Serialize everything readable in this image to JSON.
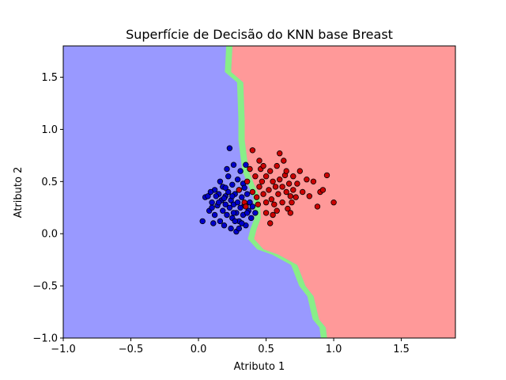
{
  "chart_data": {
    "type": "scatter",
    "title": "Superfície de Decisão do KNN base Breast",
    "xlabel": "Atributo 1",
    "ylabel": "Atributo 2",
    "xlim": [
      -1.0,
      1.9
    ],
    "ylim": [
      -1.0,
      1.8
    ],
    "x_ticks": [
      -1.0,
      -0.5,
      0.0,
      0.5,
      1.0,
      1.5
    ],
    "y_ticks": [
      -1.0,
      -0.5,
      0.0,
      0.5,
      1.0,
      1.5
    ],
    "x_tick_labels": [
      "−1.0",
      "−0.5",
      "0.0",
      "0.5",
      "1.0",
      "1.5"
    ],
    "y_tick_labels": [
      "−1.0",
      "−0.5",
      "0.0",
      "0.5",
      "1.0",
      "1.5"
    ],
    "grid": false,
    "decision_surface": {
      "colors": {
        "class_0": "#9999ff",
        "class_1": "#ff9999",
        "transition": "#88ee88"
      },
      "boundary": [
        [
          0.24,
          1.8
        ],
        [
          0.23,
          1.55
        ],
        [
          0.32,
          1.45
        ],
        [
          0.33,
          1.1
        ],
        [
          0.33,
          0.9
        ],
        [
          0.36,
          0.6
        ],
        [
          0.44,
          0.35
        ],
        [
          0.45,
          0.15
        ],
        [
          0.42,
          0.05
        ],
        [
          0.4,
          -0.05
        ],
        [
          0.47,
          -0.15
        ],
        [
          0.58,
          -0.2
        ],
        [
          0.72,
          -0.3
        ],
        [
          0.78,
          -0.5
        ],
        [
          0.84,
          -0.6
        ],
        [
          0.88,
          -0.82
        ],
        [
          0.93,
          -0.9
        ],
        [
          0.94,
          -1.0
        ]
      ]
    },
    "series": [
      {
        "color": "#0000cc",
        "points": [
          [
            0.05,
            0.35
          ],
          [
            0.08,
            0.22
          ],
          [
            0.1,
            0.3
          ],
          [
            0.12,
            0.42
          ],
          [
            0.12,
            0.18
          ],
          [
            0.14,
            0.27
          ],
          [
            0.15,
            0.38
          ],
          [
            0.16,
            0.12
          ],
          [
            0.17,
            0.32
          ],
          [
            0.18,
            0.22
          ],
          [
            0.18,
            0.45
          ],
          [
            0.19,
            0.08
          ],
          [
            0.2,
            0.28
          ],
          [
            0.2,
            0.36
          ],
          [
            0.21,
            0.18
          ],
          [
            0.22,
            0.4
          ],
          [
            0.22,
            0.55
          ],
          [
            0.23,
            0.25
          ],
          [
            0.24,
            0.05
          ],
          [
            0.24,
            0.32
          ],
          [
            0.25,
            0.15
          ],
          [
            0.25,
            0.47
          ],
          [
            0.26,
            0.66
          ],
          [
            0.26,
            0.28
          ],
          [
            0.27,
            0.38
          ],
          [
            0.28,
            0.2
          ],
          [
            0.28,
            0.02
          ],
          [
            0.29,
            0.3
          ],
          [
            0.3,
            0.42
          ],
          [
            0.3,
            0.12
          ],
          [
            0.31,
            0.25
          ],
          [
            0.32,
            0.35
          ],
          [
            0.33,
            0.48
          ],
          [
            0.33,
            0.18
          ],
          [
            0.34,
            0.28
          ],
          [
            0.35,
            0.08
          ],
          [
            0.36,
            0.38
          ],
          [
            0.37,
            0.22
          ],
          [
            0.38,
            0.3
          ],
          [
            0.39,
            0.15
          ],
          [
            0.4,
            0.26
          ],
          [
            0.42,
            0.2
          ],
          [
            0.1,
            0.25
          ],
          [
            0.13,
            0.36
          ],
          [
            0.16,
            0.5
          ],
          [
            0.21,
            0.62
          ],
          [
            0.23,
            0.82
          ],
          [
            0.27,
            0.12
          ],
          [
            0.29,
            0.52
          ],
          [
            0.31,
            0.6
          ],
          [
            0.34,
            0.44
          ],
          [
            0.36,
            0.2
          ],
          [
            0.3,
            0.05
          ],
          [
            0.26,
            0.2
          ],
          [
            0.19,
            0.34
          ],
          [
            0.15,
            0.3
          ],
          [
            0.11,
            0.1
          ],
          [
            0.07,
            0.36
          ],
          [
            0.03,
            0.12
          ],
          [
            0.35,
            0.66
          ],
          [
            0.2,
            0.44
          ],
          [
            0.25,
            0.36
          ],
          [
            0.32,
            0.1
          ],
          [
            0.09,
            0.4
          ]
        ]
      },
      {
        "color": "#cc0000",
        "points": [
          [
            0.3,
            0.42
          ],
          [
            0.34,
            0.3
          ],
          [
            0.36,
            0.5
          ],
          [
            0.38,
            0.62
          ],
          [
            0.4,
            0.4
          ],
          [
            0.4,
            0.8
          ],
          [
            0.42,
            0.55
          ],
          [
            0.43,
            0.35
          ],
          [
            0.44,
            0.28
          ],
          [
            0.45,
            0.45
          ],
          [
            0.46,
            0.62
          ],
          [
            0.47,
            0.5
          ],
          [
            0.48,
            0.38
          ],
          [
            0.5,
            0.3
          ],
          [
            0.5,
            0.55
          ],
          [
            0.52,
            0.42
          ],
          [
            0.53,
            0.6
          ],
          [
            0.54,
            0.33
          ],
          [
            0.55,
            0.5
          ],
          [
            0.56,
            0.28
          ],
          [
            0.57,
            0.45
          ],
          [
            0.58,
            0.65
          ],
          [
            0.59,
            0.38
          ],
          [
            0.6,
            0.52
          ],
          [
            0.6,
            0.77
          ],
          [
            0.62,
            0.3
          ],
          [
            0.62,
            0.45
          ],
          [
            0.63,
            0.7
          ],
          [
            0.64,
            0.56
          ],
          [
            0.65,
            0.4
          ],
          [
            0.66,
            0.24
          ],
          [
            0.67,
            0.48
          ],
          [
            0.68,
            0.36
          ],
          [
            0.7,
            0.55
          ],
          [
            0.7,
            0.42
          ],
          [
            0.72,
            0.35
          ],
          [
            0.73,
            0.48
          ],
          [
            0.75,
            0.6
          ],
          [
            0.77,
            0.4
          ],
          [
            0.8,
            0.52
          ],
          [
            0.82,
            0.36
          ],
          [
            0.85,
            0.5
          ],
          [
            0.88,
            0.26
          ],
          [
            0.9,
            0.4
          ],
          [
            0.92,
            0.42
          ],
          [
            0.95,
            0.56
          ],
          [
            1.0,
            0.3
          ],
          [
            0.5,
            0.2
          ],
          [
            0.55,
            0.18
          ],
          [
            0.48,
            0.65
          ],
          [
            0.65,
            0.6
          ],
          [
            0.45,
            0.7
          ],
          [
            0.58,
            0.22
          ],
          [
            0.69,
            0.3
          ],
          [
            0.35,
            0.26
          ],
          [
            0.53,
            0.1
          ],
          [
            0.68,
            0.2
          ]
        ]
      }
    ]
  }
}
